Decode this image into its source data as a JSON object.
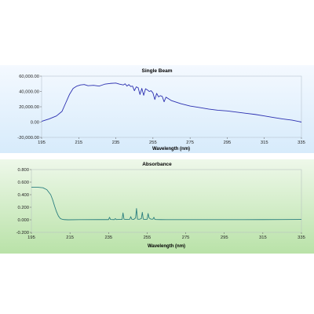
{
  "chart_data": [
    {
      "type": "line",
      "title": "Single Beam",
      "xlabel": "Wavelength (nm)",
      "ylabel": "",
      "xlim": [
        195,
        335
      ],
      "ylim": [
        -20000,
        60000
      ],
      "xticks": [
        "195",
        "215",
        "235",
        "255",
        "275",
        "295",
        "315",
        "335"
      ],
      "yticks": [
        "60,000.00",
        "40,000.00",
        "20,000.00",
        "0.00",
        "-20,000.00"
      ],
      "grid": false,
      "legend": "none",
      "background": "blue-gradient",
      "line_color": "#2b2fb0",
      "series": [
        {
          "x": [
            195,
            199,
            203,
            206,
            208,
            210,
            212,
            214,
            216,
            218,
            220,
            223,
            226,
            229,
            232,
            235,
            237,
            239,
            240,
            241,
            242,
            243,
            244,
            245,
            246,
            247,
            248,
            249,
            250,
            251,
            252,
            253,
            254,
            255,
            256,
            257,
            258,
            259,
            260,
            261,
            262,
            263,
            265,
            270,
            275,
            280,
            285,
            290,
            295,
            300,
            305,
            310,
            315,
            320,
            325,
            330,
            335
          ],
          "y": [
            1000,
            4000,
            8000,
            14000,
            25000,
            36000,
            44000,
            47000,
            48500,
            49000,
            47500,
            48000,
            47000,
            49500,
            50500,
            51000,
            49500,
            48500,
            50000,
            47000,
            49000,
            46500,
            47000,
            41000,
            46000,
            45000,
            36000,
            44000,
            35000,
            43500,
            42000,
            40000,
            41000,
            38000,
            29500,
            37500,
            33000,
            34500,
            33500,
            26500,
            32500,
            31000,
            28000,
            24000,
            21000,
            19000,
            17000,
            15500,
            14500,
            13000,
            11500,
            10000,
            8000,
            6000,
            4000,
            2500,
            0
          ]
        }
      ]
    },
    {
      "type": "line",
      "title": "Absorbance",
      "xlabel": "Wavelength (nm)",
      "ylabel": "",
      "xlim": [
        195,
        335
      ],
      "ylim": [
        -0.2,
        0.8
      ],
      "xticks": [
        "195",
        "215",
        "235",
        "255",
        "275",
        "295",
        "315",
        "335"
      ],
      "yticks": [
        "0.800",
        "0.600",
        "0.400",
        "0.200",
        "0.000",
        "-0.200"
      ],
      "grid": false,
      "legend": "none",
      "background": "green-gradient",
      "line_color": "#2b7f7f",
      "series": [
        {
          "x": [
            195,
            198,
            201,
            203,
            205,
            206,
            207,
            208,
            209,
            210,
            211,
            212,
            214,
            220,
            230,
            235,
            235.5,
            236,
            238,
            238.5,
            239,
            240,
            242,
            242.5,
            243,
            244,
            246,
            246.5,
            247,
            248,
            249,
            249.5,
            250,
            251,
            252,
            252.5,
            253,
            254,
            255,
            255.5,
            256,
            257,
            258,
            258.5,
            259,
            260,
            262,
            265,
            275,
            285,
            295,
            305,
            315,
            325,
            335
          ],
          "y": [
            0.52,
            0.52,
            0.51,
            0.48,
            0.4,
            0.32,
            0.22,
            0.13,
            0.06,
            0.02,
            0.008,
            0.003,
            0.0,
            0.002,
            0.003,
            0.003,
            0.04,
            0.005,
            0.003,
            0.02,
            0.004,
            0.005,
            0.006,
            0.11,
            0.01,
            0.006,
            0.008,
            0.05,
            0.01,
            0.005,
            0.03,
            0.18,
            0.01,
            0.008,
            0.02,
            0.12,
            0.01,
            0.005,
            0.008,
            0.1,
            0.03,
            0.01,
            0.01,
            0.04,
            0.006,
            0.004,
            0.003,
            0.002,
            0.002,
            0.002,
            0.002,
            0.002,
            0.003,
            0.004,
            0.006
          ]
        }
      ]
    }
  ]
}
